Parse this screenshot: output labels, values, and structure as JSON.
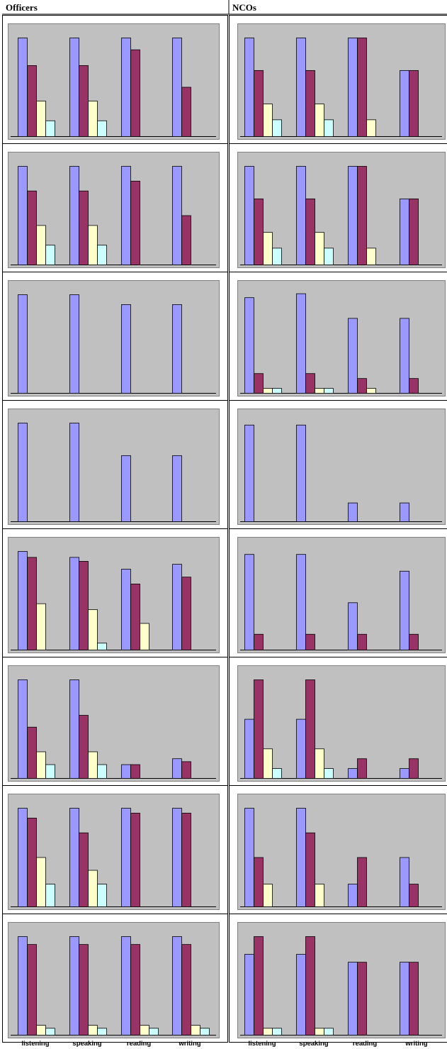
{
  "headers": {
    "left": "Officers",
    "right": "NCOs"
  },
  "colors": {
    "s1": "#9999ff",
    "s2": "#993366",
    "s3": "#ffffcc",
    "s4": "#ccffff",
    "plot": "#c0c0c0"
  },
  "chart_data": [
    {
      "type": "bar",
      "column": "Officers",
      "row": 1,
      "ylim": [
        0,
        1
      ],
      "categories": [
        "listening",
        "speaking",
        "reading",
        "writing"
      ],
      "series": [
        {
          "values": [
            1,
            1,
            1,
            1
          ]
        },
        {
          "values": [
            0.72,
            0.72,
            0.88,
            0.5
          ]
        },
        {
          "values": [
            0.36,
            0.36,
            0,
            0
          ]
        },
        {
          "values": [
            0.16,
            0.16,
            0,
            0
          ]
        }
      ]
    },
    {
      "type": "bar",
      "column": "NCOs",
      "row": 1,
      "ylim": [
        0,
        1
      ],
      "categories": [
        "listening",
        "speaking",
        "reading",
        "writing"
      ],
      "series": [
        {
          "values": [
            1,
            1,
            1,
            0.67
          ]
        },
        {
          "values": [
            0.67,
            0.67,
            1,
            0.67
          ]
        },
        {
          "values": [
            0.33,
            0.33,
            0.17,
            0
          ]
        },
        {
          "values": [
            0.17,
            0.17,
            0,
            0
          ]
        }
      ]
    },
    {
      "type": "bar",
      "column": "Officers",
      "row": 2,
      "ylim": [
        0,
        1
      ],
      "categories": [
        "listening",
        "speaking",
        "reading",
        "writing"
      ],
      "series": [
        {
          "values": [
            1,
            1,
            1,
            1
          ]
        },
        {
          "values": [
            0.75,
            0.75,
            0.85,
            0.5
          ]
        },
        {
          "values": [
            0.4,
            0.4,
            0,
            0
          ]
        },
        {
          "values": [
            0.2,
            0.2,
            0,
            0
          ]
        }
      ]
    },
    {
      "type": "bar",
      "column": "NCOs",
      "row": 2,
      "ylim": [
        0,
        1
      ],
      "categories": [
        "listening",
        "speaking",
        "reading",
        "writing"
      ],
      "series": [
        {
          "values": [
            1,
            1,
            1,
            0.67
          ]
        },
        {
          "values": [
            0.67,
            0.67,
            1,
            0.67
          ]
        },
        {
          "values": [
            0.33,
            0.33,
            0.17,
            0
          ]
        },
        {
          "values": [
            0.17,
            0.17,
            0,
            0
          ]
        }
      ]
    },
    {
      "type": "bar",
      "column": "Officers",
      "row": 3,
      "ylim": [
        0,
        1
      ],
      "categories": [
        "listening",
        "speaking",
        "reading",
        "writing"
      ],
      "series": [
        {
          "values": [
            1,
            1,
            0.9,
            0.9
          ]
        },
        {
          "values": [
            0,
            0,
            0,
            0
          ]
        },
        {
          "values": [
            0,
            0,
            0,
            0
          ]
        },
        {
          "values": [
            0,
            0,
            0,
            0
          ]
        }
      ]
    },
    {
      "type": "bar",
      "column": "NCOs",
      "row": 3,
      "ylim": [
        0,
        1
      ],
      "categories": [
        "listening",
        "speaking",
        "reading",
        "writing"
      ],
      "series": [
        {
          "values": [
            0.97,
            1.01,
            0.76,
            0.76
          ]
        },
        {
          "values": [
            0.2,
            0.2,
            0.15,
            0.15
          ]
        },
        {
          "values": [
            0.05,
            0.05,
            0.05,
            0
          ]
        },
        {
          "values": [
            0.05,
            0.05,
            0,
            0
          ]
        }
      ]
    },
    {
      "type": "bar",
      "column": "Officers",
      "row": 4,
      "ylim": [
        0,
        1
      ],
      "categories": [
        "listening",
        "speaking",
        "reading",
        "writing"
      ],
      "series": [
        {
          "values": [
            1,
            1,
            0.67,
            0.67
          ]
        },
        {
          "values": [
            0,
            0,
            0,
            0
          ]
        },
        {
          "values": [
            0,
            0,
            0,
            0
          ]
        },
        {
          "values": [
            0,
            0,
            0,
            0
          ]
        }
      ]
    },
    {
      "type": "bar",
      "column": "NCOs",
      "row": 4,
      "ylim": [
        0,
        1
      ],
      "categories": [
        "listening",
        "speaking",
        "reading",
        "writing"
      ],
      "series": [
        {
          "values": [
            0.98,
            0.98,
            0.19,
            0.19
          ]
        },
        {
          "values": [
            0,
            0,
            0,
            0
          ]
        },
        {
          "values": [
            0,
            0,
            0,
            0
          ]
        },
        {
          "values": [
            0,
            0,
            0,
            0
          ]
        }
      ]
    },
    {
      "type": "bar",
      "column": "Officers",
      "row": 5,
      "ylim": [
        0,
        1
      ],
      "categories": [
        "listening",
        "speaking",
        "reading",
        "writing"
      ],
      "series": [
        {
          "values": [
            1,
            0.94,
            0.82,
            0.87
          ]
        },
        {
          "values": [
            0.94,
            0.9,
            0.67,
            0.74
          ]
        },
        {
          "values": [
            0.47,
            0.41,
            0.27,
            0
          ]
        },
        {
          "values": [
            0,
            0.07,
            0,
            0
          ]
        }
      ]
    },
    {
      "type": "bar",
      "column": "NCOs",
      "row": 5,
      "ylim": [
        0,
        1
      ],
      "categories": [
        "listening",
        "speaking",
        "reading",
        "writing"
      ],
      "series": [
        {
          "values": [
            0.97,
            0.97,
            0.48,
            0.8
          ]
        },
        {
          "values": [
            0.16,
            0.16,
            0.16,
            0.16
          ]
        },
        {
          "values": [
            0,
            0,
            0,
            0
          ]
        },
        {
          "values": [
            0,
            0,
            0,
            0
          ]
        }
      ]
    },
    {
      "type": "bar",
      "column": "Officers",
      "row": 6,
      "ylim": [
        0,
        1
      ],
      "categories": [
        "listening",
        "speaking",
        "reading",
        "writing"
      ],
      "series": [
        {
          "values": [
            1,
            1,
            0.14,
            0.2
          ]
        },
        {
          "values": [
            0.52,
            0.64,
            0.14,
            0.17
          ]
        },
        {
          "values": [
            0.27,
            0.27,
            0,
            0
          ]
        },
        {
          "values": [
            0.14,
            0.14,
            0,
            0
          ]
        }
      ]
    },
    {
      "type": "bar",
      "column": "NCOs",
      "row": 6,
      "ylim": [
        0,
        1
      ],
      "categories": [
        "listening",
        "speaking",
        "reading",
        "writing"
      ],
      "series": [
        {
          "values": [
            0.6,
            0.6,
            0.1,
            0.1
          ]
        },
        {
          "values": [
            1,
            1,
            0.2,
            0.2
          ]
        },
        {
          "values": [
            0.3,
            0.3,
            0,
            0
          ]
        },
        {
          "values": [
            0.1,
            0.1,
            0,
            0
          ]
        }
      ]
    },
    {
      "type": "bar",
      "column": "Officers",
      "row": 7,
      "ylim": [
        0,
        1
      ],
      "categories": [
        "listening",
        "speaking",
        "reading",
        "writing"
      ],
      "series": [
        {
          "values": [
            1,
            1,
            1,
            1
          ]
        },
        {
          "values": [
            0.9,
            0.75,
            0.95,
            0.95
          ]
        },
        {
          "values": [
            0.5,
            0.37,
            0,
            0
          ]
        },
        {
          "values": [
            0.23,
            0.23,
            0,
            0
          ]
        }
      ]
    },
    {
      "type": "bar",
      "column": "NCOs",
      "row": 7,
      "ylim": [
        0,
        1
      ],
      "categories": [
        "listening",
        "speaking",
        "reading",
        "writing"
      ],
      "series": [
        {
          "values": [
            1,
            1,
            0.23,
            0.5
          ]
        },
        {
          "values": [
            0.5,
            0.75,
            0.5,
            0.23
          ]
        },
        {
          "values": [
            0.23,
            0.23,
            0,
            0
          ]
        },
        {
          "values": [
            0,
            0,
            0,
            0
          ]
        }
      ]
    },
    {
      "type": "bar",
      "column": "Officers",
      "row": 8,
      "ylim": [
        0,
        1
      ],
      "categories": [
        "listening",
        "speaking",
        "reading",
        "writing"
      ],
      "series": [
        {
          "values": [
            1,
            1,
            1,
            1
          ]
        },
        {
          "values": [
            0.92,
            0.92,
            0.92,
            0.92
          ]
        },
        {
          "values": [
            0.1,
            0.1,
            0.1,
            0.1
          ]
        },
        {
          "values": [
            0.07,
            0.07,
            0.07,
            0.07
          ]
        }
      ]
    },
    {
      "type": "bar",
      "column": "NCOs",
      "row": 8,
      "ylim": [
        0,
        1
      ],
      "categories": [
        "listening",
        "speaking",
        "reading",
        "writing"
      ],
      "series": [
        {
          "values": [
            0.82,
            0.82,
            0.74,
            0.74
          ]
        },
        {
          "values": [
            1,
            1,
            0.74,
            0.74
          ]
        },
        {
          "values": [
            0.07,
            0.07,
            0,
            0
          ]
        },
        {
          "values": [
            0.07,
            0.07,
            0,
            0
          ]
        }
      ]
    }
  ],
  "x_labels": {
    "left": [
      "listening",
      "speaking",
      "reading",
      "writing"
    ],
    "right": [
      "listening",
      "speaking",
      "reading",
      "writing"
    ]
  }
}
